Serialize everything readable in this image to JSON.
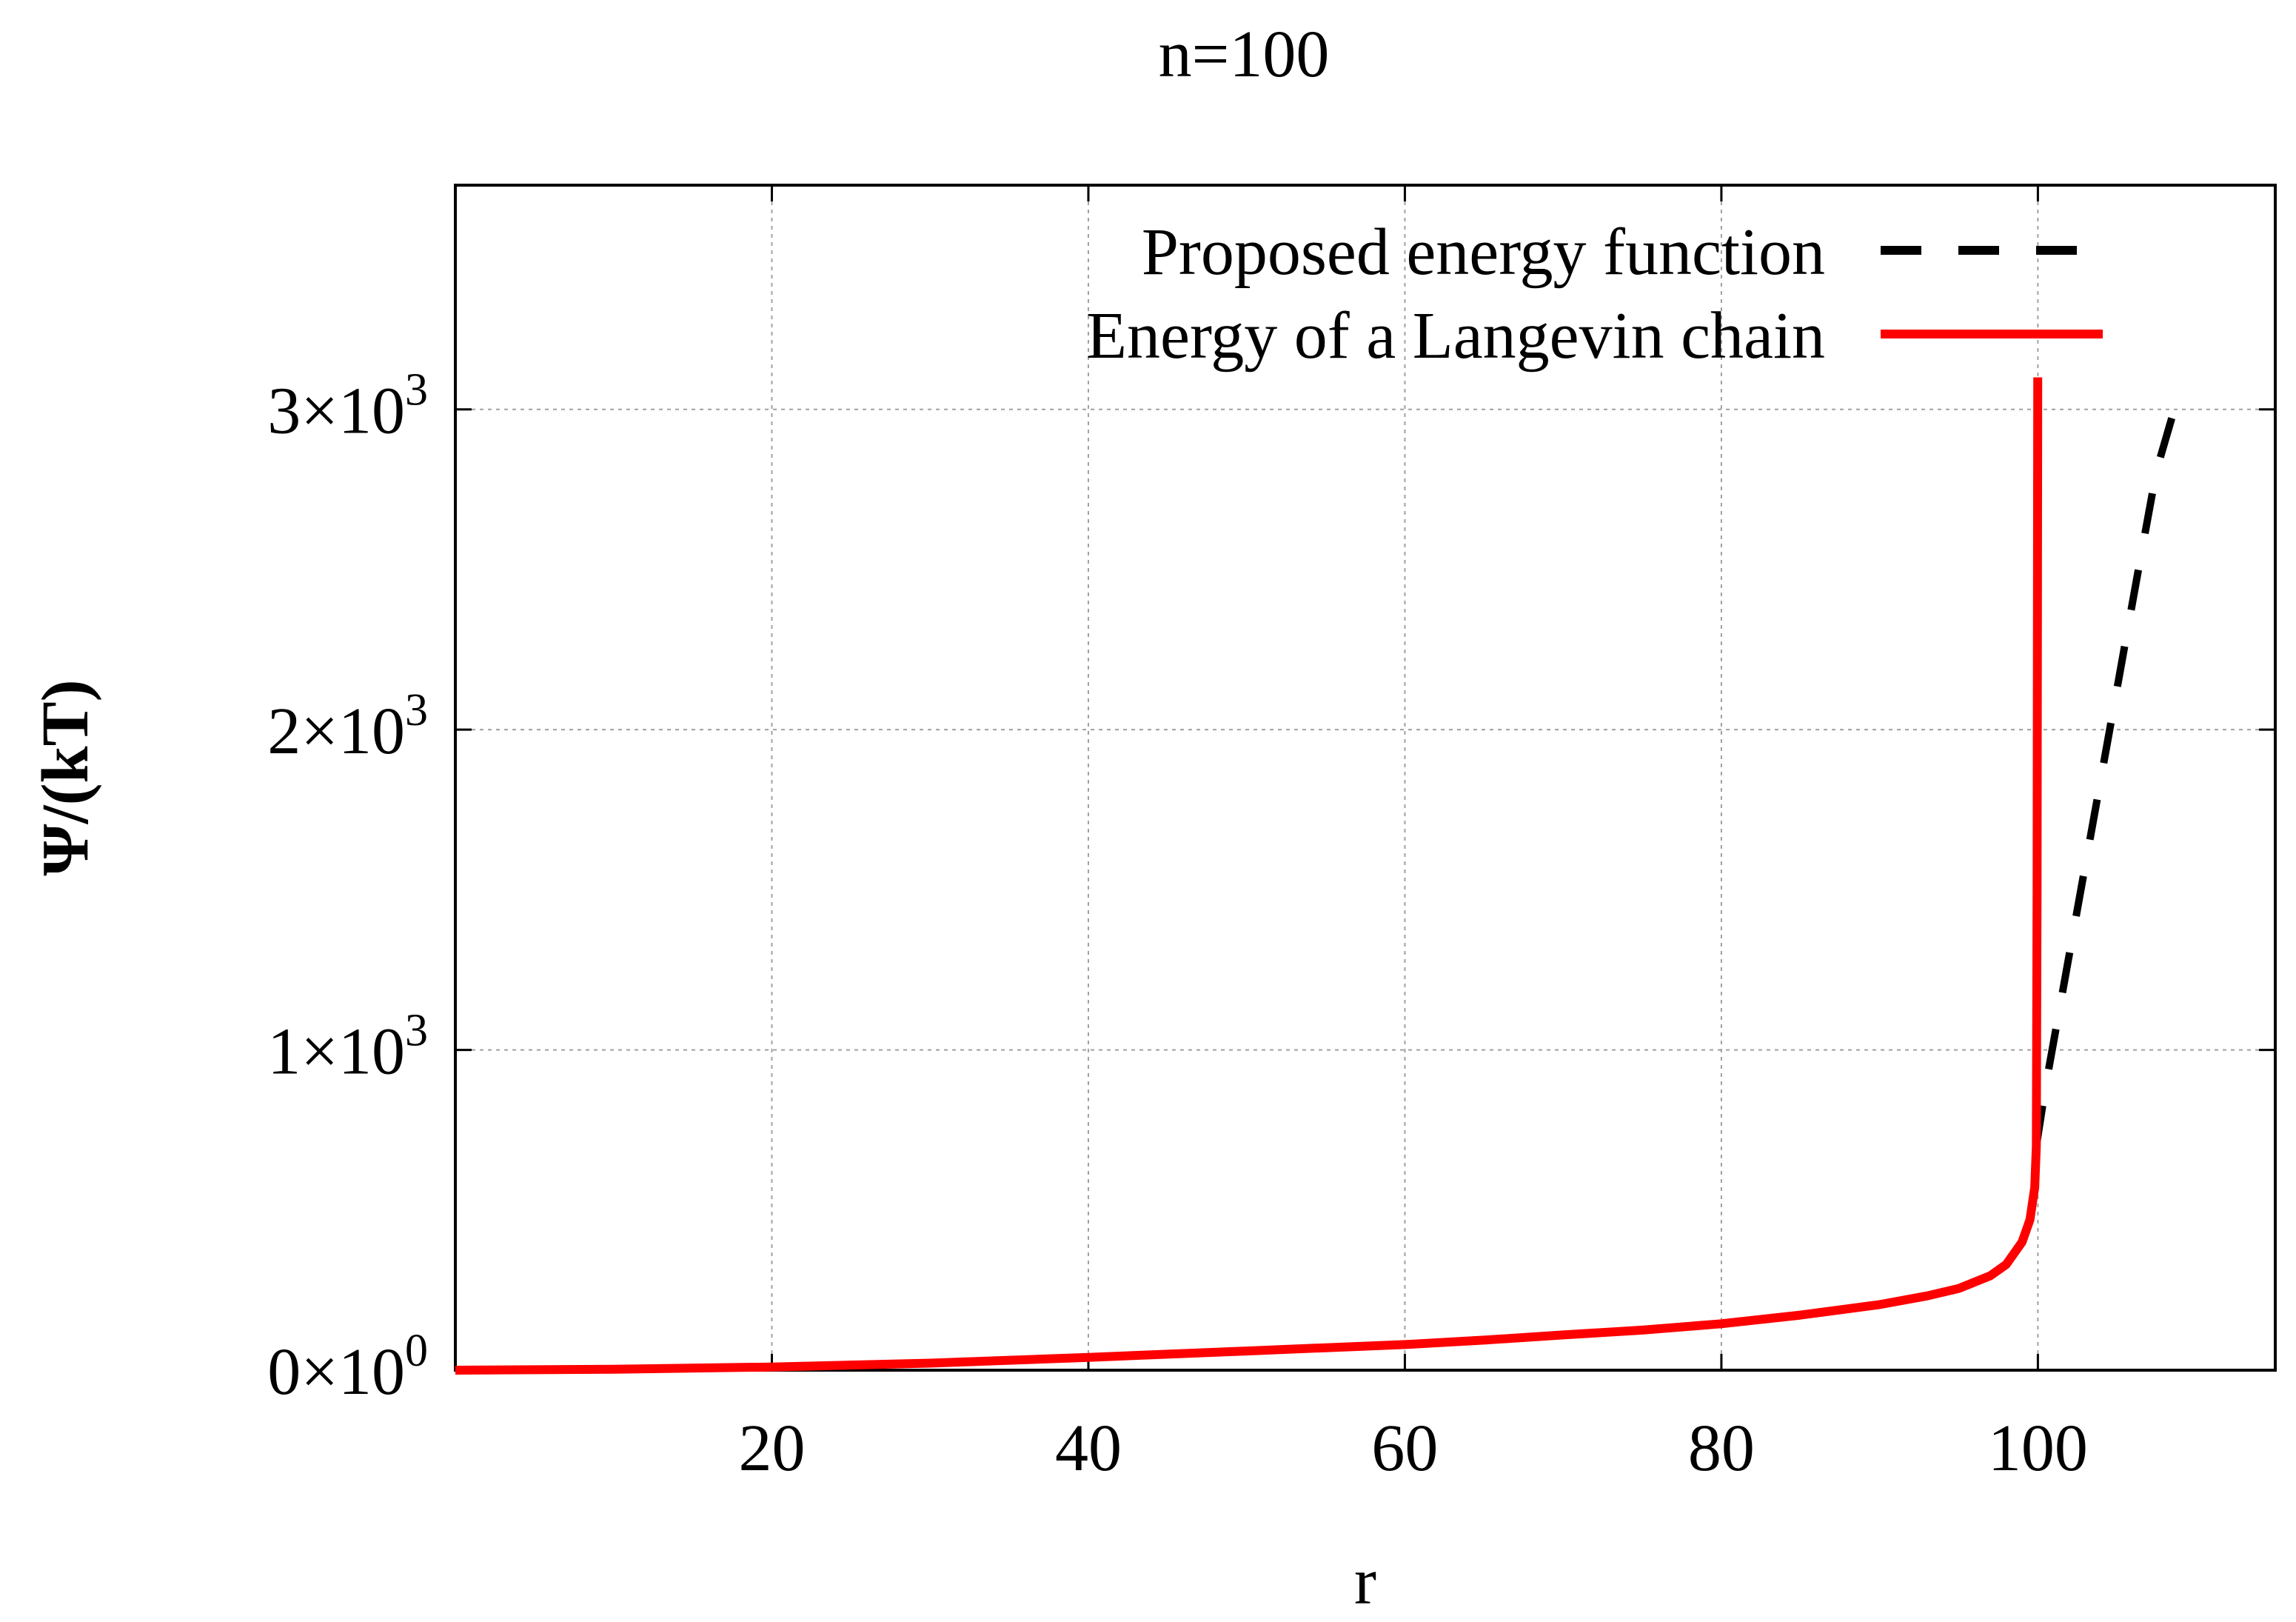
{
  "chart_data": {
    "type": "line",
    "title": "n=100",
    "xlabel": "r",
    "ylabel": "Ψ/(kT)",
    "xlim": [
      0,
      115
    ],
    "ylim": [
      0,
      3700
    ],
    "grid": true,
    "legend_position": "top-right",
    "x_ticks": [
      {
        "value": 20,
        "label": "20"
      },
      {
        "value": 40,
        "label": "40"
      },
      {
        "value": 60,
        "label": "60"
      },
      {
        "value": 80,
        "label": "80"
      },
      {
        "value": 100,
        "label": "100"
      }
    ],
    "y_ticks": [
      {
        "value": 0,
        "mantissa": "0",
        "times": "×10",
        "exponent": "0"
      },
      {
        "value": 1000,
        "mantissa": "1",
        "times": "×10",
        "exponent": "3"
      },
      {
        "value": 2000,
        "mantissa": "2",
        "times": "×10",
        "exponent": "3"
      },
      {
        "value": 3000,
        "mantissa": "3",
        "times": "×10",
        "exponent": "3"
      }
    ],
    "series": [
      {
        "name": "Proposed energy function",
        "color": "#000000",
        "style": "dashed",
        "x": [
          99.9,
          100.5,
          101.5,
          102.5,
          103.5,
          104.5,
          105.5,
          106.5,
          107.5,
          108.5,
          109.5
        ],
        "y": [
          700,
          890,
          1165,
          1440,
          1715,
          1990,
          2265,
          2540,
          2810,
          2980,
          3050
        ]
      },
      {
        "name": "Energy of a Langevin chain",
        "color": "#ff0000",
        "style": "solid",
        "x": [
          0,
          10,
          20,
          30,
          40,
          50,
          55,
          60,
          65,
          70,
          75,
          80,
          85,
          90,
          93,
          95,
          97,
          98,
          99,
          99.5,
          99.8,
          99.9,
          99.95,
          99.99
        ],
        "y": [
          0,
          3,
          10,
          22,
          40,
          60,
          70,
          80,
          94,
          110,
          125,
          145,
          172,
          205,
          232,
          255,
          295,
          330,
          400,
          470,
          570,
          700,
          1500,
          3100
        ]
      }
    ]
  }
}
